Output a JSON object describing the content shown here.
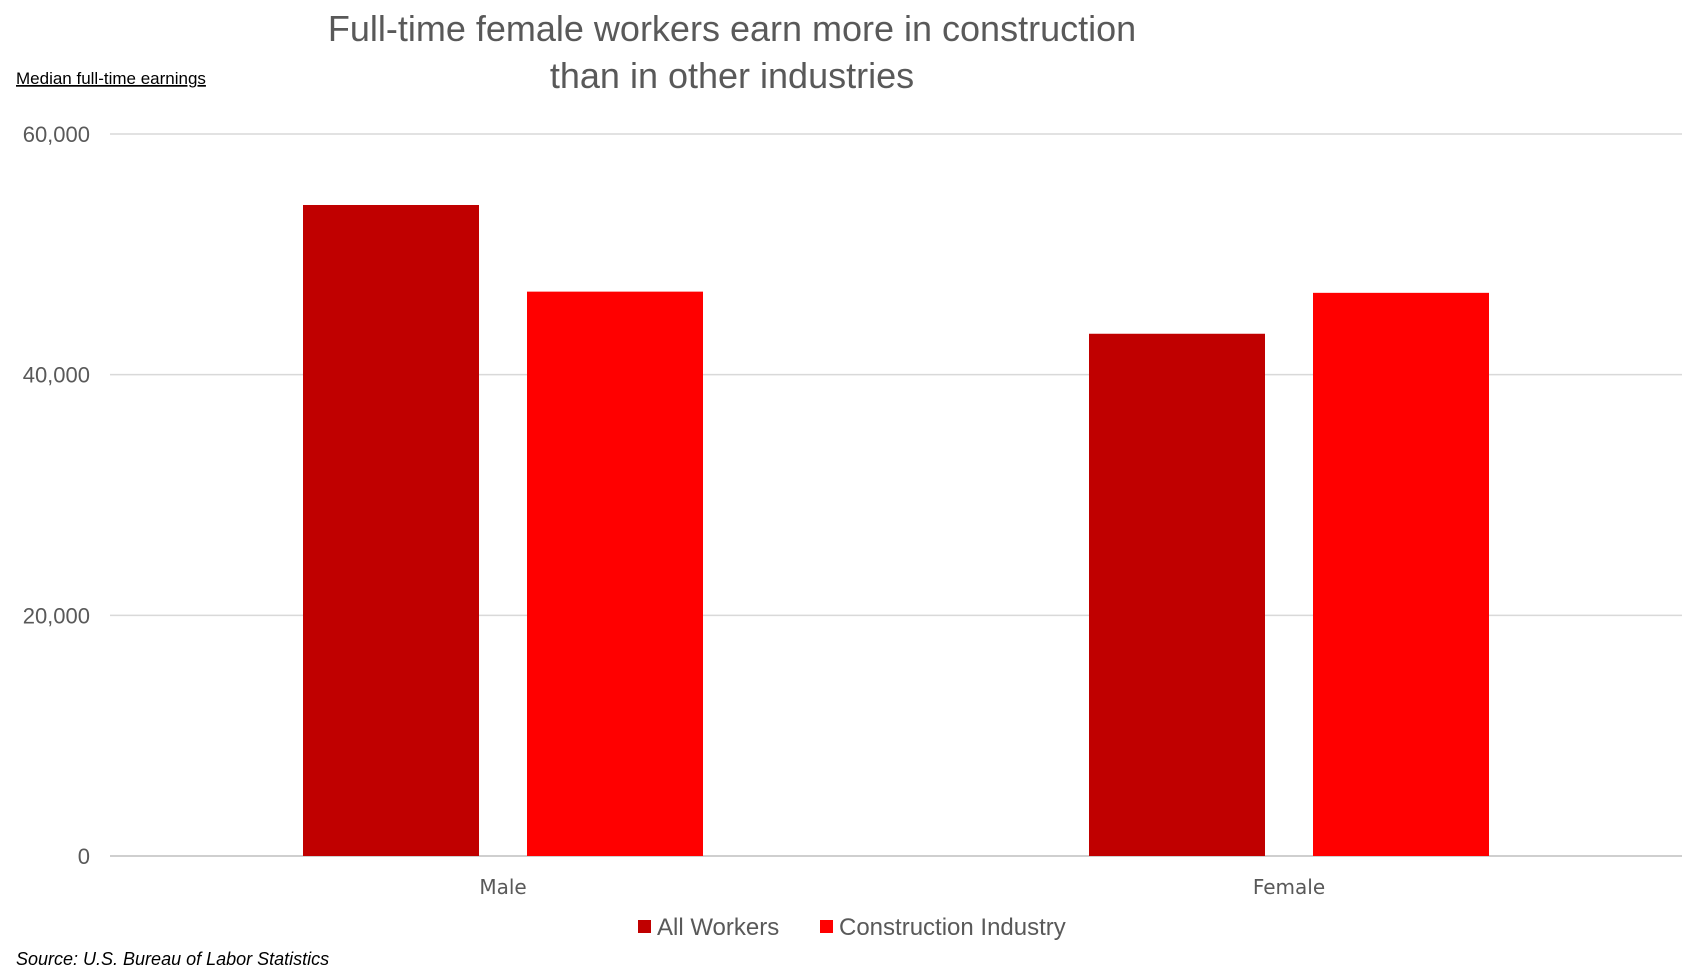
{
  "chart_data": {
    "type": "bar",
    "title_lines": [
      "Full-time female workers earn more in construction",
      "than in other industries"
    ],
    "ylabel": "Median full-time earnings",
    "xlabel": "",
    "categories": [
      "Male",
      "Female"
    ],
    "series": [
      {
        "name": "All Workers",
        "color": "#c00000",
        "values": [
          54100,
          43400
        ]
      },
      {
        "name": "Construction Industry",
        "color": "#ff0000",
        "values": [
          46900,
          46800
        ]
      }
    ],
    "ylim": [
      0,
      60000
    ],
    "yticks": [
      0,
      20000,
      40000,
      60000
    ],
    "ytick_labels": [
      "0",
      "20,000",
      "40,000",
      "60,000"
    ],
    "grid": true,
    "legend_position": "bottom",
    "source": "Source: U.S. Bureau of Labor Statistics"
  }
}
